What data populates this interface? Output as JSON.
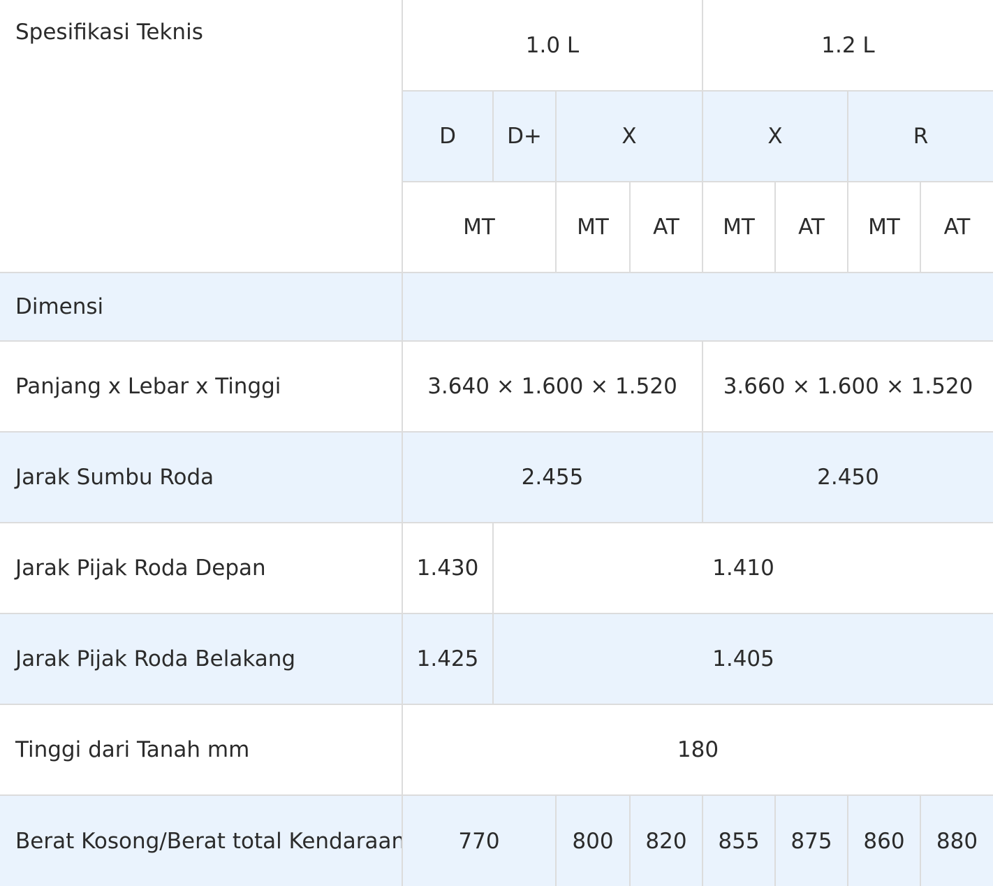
{
  "table": {
    "corner_label": "Spesifikasi Teknis",
    "engines": [
      "1.0 L",
      "1.2 L"
    ],
    "grades": [
      "D",
      "D+",
      "X",
      "X",
      "R"
    ],
    "transmissions": [
      "MT",
      "MT",
      "AT",
      "MT",
      "AT",
      "MT",
      "AT"
    ],
    "section_label": "Dimensi",
    "rows": {
      "dimensions": {
        "label": "Panjang x Lebar x Tinggi",
        "values": [
          "3.640 × 1.600 × 1.520",
          "3.660 × 1.600 × 1.520"
        ]
      },
      "wheelbase": {
        "label": "Jarak Sumbu Roda",
        "values": [
          "2.455",
          "2.450"
        ]
      },
      "front_tread": {
        "label": "Jarak Pijak Roda Depan",
        "values": [
          "1.430",
          "1.410"
        ]
      },
      "rear_tread": {
        "label": "Jarak Pijak Roda Belakang",
        "values": [
          "1.425",
          "1.405"
        ]
      },
      "ground_clearance": {
        "label": "Tinggi dari Tanah mm",
        "values": [
          "180"
        ]
      },
      "weight": {
        "label": "Berat Kosong/Berat total Kendaraan",
        "values": [
          "770",
          "800",
          "820",
          "855",
          "875",
          "860",
          "880"
        ]
      }
    }
  }
}
